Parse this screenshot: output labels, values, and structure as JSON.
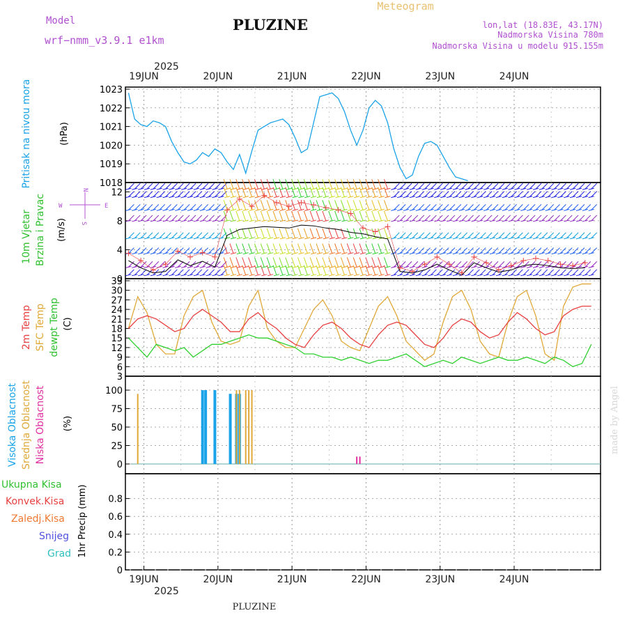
{
  "header": {
    "model_label": "Model",
    "model_name": "wrf−nmm_v3.9.1  e1km",
    "station": "PLUZINE",
    "meteogram_label": "Meteogram",
    "lonlat": "lon,lat (18.83E, 43.17N)",
    "elevation": "Nadmorska Visina 780m",
    "model_elevation": "Nadmorska Visina u modelu 915.155m",
    "year_top": "2025",
    "year_bottom": "2025",
    "footer_station": "PLUZINE",
    "credit": "made by Angel"
  },
  "axes_labels": {
    "pressure": [
      "Pritisak na nivou mora",
      "(hPa)"
    ],
    "wind": [
      "10m Vjetar",
      "Brzina i Pravac",
      "(m/s)"
    ],
    "compass": [
      "N",
      "W",
      "E",
      "S"
    ],
    "temp": [
      "2m Temp",
      "SFC Temp",
      "dewpt Temp",
      "(C)"
    ],
    "cloud": [
      "Visoka Oblacnost",
      "Srednja Oblacnost",
      "Niska Oblacnost",
      "(%)"
    ],
    "precip_legend": [
      "Ukupna Kisa",
      "Konvek.Kisa",
      "Zaledj.Kisa",
      "Snijeg",
      "Grad"
    ],
    "precip_unit": "1hr Precip (mm)"
  },
  "colors": {
    "pressure": "#1aa3e8",
    "temp2m": "#e84040",
    "sfc": "#e0a838",
    "dewpt": "#30d030",
    "wind_speed": "#000000",
    "gust": "#e84040",
    "cloud_high": "#1aa3e8",
    "cloud_mid": "#e0a838",
    "cloud_low": "#e030a0",
    "precip_total": "#30c030",
    "precip_conv": "#e84040",
    "precip_frz": "#f07830",
    "snow": "#5050e0",
    "hail": "#30c0c0",
    "model_label": "#b050d0",
    "meteogram_label": "#e8c070"
  },
  "chart_data": [
    {
      "type": "line",
      "panel": "pressure",
      "x_unit": "hours from 19JUN 00",
      "x_ticks": [
        "19JUN",
        "20JUN",
        "21JUN",
        "22JUN",
        "23JUN",
        "24JUN"
      ],
      "ylim": [
        1018,
        1023
      ],
      "yticks": [
        1018,
        1019,
        1020,
        1021,
        1022,
        1023
      ],
      "series": [
        {
          "x": [
            -5,
            -3,
            -1,
            1,
            3,
            5,
            7,
            9,
            11,
            13,
            15,
            17,
            19,
            21,
            23,
            25,
            27,
            29,
            31,
            33,
            35,
            37,
            39,
            41,
            43,
            45,
            47,
            49,
            51,
            53,
            55,
            57,
            59,
            61,
            63,
            65,
            67,
            69,
            71,
            73,
            75,
            77,
            79,
            81,
            83,
            85,
            87,
            89,
            91,
            93,
            95,
            97,
            99,
            101,
            103,
            105,
            107,
            109,
            111,
            113,
            115,
            117,
            119,
            121,
            123,
            125,
            127,
            129,
            131,
            133,
            135,
            137,
            139,
            141,
            143,
            145
          ],
          "values": [
            1022.8,
            1021.4,
            1021.1,
            1021.0,
            1021.3,
            1021.2,
            1021.0,
            1020.2,
            1019.6,
            1019.1,
            1019.0,
            1019.2,
            1019.6,
            1019.4,
            1019.8,
            1019.6,
            1019.1,
            1018.7,
            1019.5,
            1018.5,
            1019.7,
            1020.8,
            1021.0,
            1021.2,
            1021.3,
            1021.4,
            1021.1,
            1020.4,
            1019.6,
            1019.8,
            1021.2,
            1022.6,
            1022.7,
            1022.8,
            1022.5,
            1021.8,
            1020.8,
            1020.0,
            1020.8,
            1022.0,
            1022.4,
            1022.1,
            1021.2,
            1019.8,
            1018.8,
            1018.2,
            1018.4,
            1019.4,
            1020.1,
            1020.2,
            1020.0,
            1019.4,
            1018.8,
            1018.3,
            1018.2,
            1018.1,
            1018.0,
            1018.0,
            1018.0,
            1018.0,
            1018.0,
            1018.0,
            1018.0,
            1018.0,
            1018.0,
            1018.0,
            1018.0,
            1018.0,
            1018.0,
            1018.0,
            1018.0,
            1018.0,
            1018.0,
            1018.0,
            1018.0,
            1018.0
          ]
        }
      ]
    },
    {
      "type": "line",
      "panel": "wind",
      "ylim": [
        0,
        13
      ],
      "yticks": [
        0,
        4,
        8,
        12
      ],
      "series": [
        {
          "x": [
            -5,
            -1,
            3,
            7,
            11,
            15,
            19,
            23,
            27,
            31,
            35,
            39,
            43,
            47,
            51,
            55,
            59,
            63,
            67,
            71,
            75,
            79,
            83,
            87,
            91,
            95,
            99,
            103,
            107,
            111,
            115,
            119,
            123,
            127,
            131,
            135,
            139,
            143
          ],
          "values": [
            2.5,
            1.5,
            0.8,
            1.0,
            2.6,
            1.8,
            2.4,
            1.6,
            6.0,
            6.8,
            7.0,
            7.2,
            7.1,
            7.0,
            7.4,
            7.3,
            7.0,
            6.8,
            6.4,
            6.2,
            5.8,
            5.5,
            1.0,
            0.8,
            1.2,
            2.0,
            1.2,
            0.5,
            2.2,
            1.5,
            0.9,
            1.2,
            1.8,
            2.0,
            1.8,
            1.5,
            1.4,
            1.5
          ]
        },
        {
          "x": [
            -5,
            -1,
            3,
            7,
            11,
            15,
            19,
            23,
            27,
            31,
            35,
            39,
            43,
            47,
            51,
            55,
            59,
            63,
            67,
            71,
            75,
            79,
            83,
            87,
            91,
            95,
            99,
            103,
            107,
            111,
            115,
            119,
            123,
            127,
            131,
            135,
            139,
            143
          ],
          "values": [
            3.5,
            2.5,
            1.2,
            2.0,
            3.8,
            3.0,
            3.6,
            3.0,
            9.5,
            11.0,
            10.0,
            11.5,
            10.5,
            10.0,
            10.5,
            10.2,
            9.8,
            9.5,
            9.0,
            7.0,
            6.5,
            7.2,
            1.5,
            1.0,
            2.0,
            3.0,
            2.0,
            0.8,
            3.0,
            2.2,
            1.2,
            1.8,
            2.5,
            2.8,
            2.5,
            2.0,
            1.8,
            2.2
          ]
        }
      ]
    },
    {
      "type": "line",
      "panel": "temperature",
      "ylim": [
        3,
        33
      ],
      "yticks": [
        3,
        6,
        9,
        12,
        15,
        18,
        21,
        24,
        27,
        30,
        33
      ],
      "series": [
        {
          "x": [
            -5,
            -2,
            1,
            4,
            7,
            10,
            13,
            16,
            19,
            22,
            25,
            28,
            31,
            34,
            37,
            40,
            43,
            46,
            49,
            52,
            55,
            58,
            61,
            64,
            67,
            70,
            73,
            76,
            79,
            82,
            85,
            88,
            91,
            94,
            97,
            100,
            103,
            106,
            109,
            112,
            115,
            118,
            121,
            124,
            127,
            130,
            133,
            136,
            139,
            142,
            145
          ],
          "values": [
            18,
            21,
            22,
            21,
            19,
            17,
            18,
            22,
            24,
            22,
            20,
            17,
            17,
            21,
            23,
            20,
            18,
            15,
            13,
            12,
            16,
            19,
            20,
            18,
            15,
            13,
            12,
            16,
            19,
            20,
            19,
            16,
            13,
            12,
            15,
            19,
            21,
            20,
            17,
            15,
            16,
            20,
            23,
            21,
            18,
            16,
            17,
            22,
            24,
            25,
            25
          ]
        },
        {
          "x": [
            -5,
            -2,
            1,
            4,
            7,
            10,
            13,
            16,
            19,
            22,
            25,
            28,
            31,
            34,
            37,
            40,
            43,
            46,
            49,
            52,
            55,
            58,
            61,
            64,
            67,
            70,
            73,
            76,
            79,
            82,
            85,
            88,
            91,
            94,
            97,
            100,
            103,
            106,
            109,
            112,
            115,
            118,
            121,
            124,
            127,
            130,
            133,
            136,
            139,
            142,
            145
          ],
          "values": [
            18,
            28,
            23,
            13,
            10,
            10,
            22,
            28,
            30,
            20,
            14,
            13,
            14,
            25,
            30,
            18,
            14,
            12,
            12,
            18,
            24,
            27,
            22,
            14,
            12,
            11,
            18,
            25,
            28,
            22,
            14,
            11,
            8,
            10,
            20,
            28,
            30,
            24,
            14,
            10,
            9,
            20,
            28,
            30,
            22,
            10,
            8,
            25,
            31,
            32,
            32
          ]
        },
        {
          "x": [
            -5,
            -2,
            1,
            4,
            7,
            10,
            13,
            16,
            19,
            22,
            25,
            28,
            31,
            34,
            37,
            40,
            43,
            46,
            49,
            52,
            55,
            58,
            61,
            64,
            67,
            70,
            73,
            76,
            79,
            82,
            85,
            88,
            91,
            94,
            97,
            100,
            103,
            106,
            109,
            112,
            115,
            118,
            121,
            124,
            127,
            130,
            133,
            136,
            139,
            142,
            145
          ],
          "values": [
            15,
            12,
            9,
            13,
            12,
            11,
            12,
            9,
            11,
            13,
            13,
            14,
            15,
            16,
            15,
            15,
            14,
            13,
            12,
            10,
            10,
            9,
            9,
            8,
            9,
            8,
            7,
            8,
            8,
            9,
            10,
            8,
            6,
            7,
            8,
            7,
            9,
            8,
            7,
            8,
            9,
            8,
            8,
            9,
            8,
            7,
            9,
            8,
            6,
            7,
            13
          ]
        }
      ]
    },
    {
      "type": "bar",
      "panel": "cloud",
      "ylim": [
        0,
        100
      ],
      "yticks": [
        0,
        25,
        50,
        75,
        100
      ],
      "series": [
        {
          "name": "high",
          "x": [
            19,
            20,
            23,
            28,
            30,
            31
          ],
          "values": [
            100,
            100,
            100,
            95,
            95,
            95
          ]
        },
        {
          "name": "mid",
          "x": [
            -2,
            30,
            31,
            33,
            34,
            35
          ],
          "values": [
            95,
            100,
            100,
            100,
            100,
            100
          ]
        },
        {
          "name": "low",
          "x": [
            69,
            70
          ],
          "values": [
            10,
            10
          ]
        }
      ]
    },
    {
      "type": "bar",
      "panel": "precip",
      "ylim": [
        0,
        1
      ],
      "yticks": [
        0,
        0.2,
        0.4,
        0.6,
        0.8
      ],
      "series": [
        {
          "x": [],
          "values": []
        }
      ]
    }
  ]
}
